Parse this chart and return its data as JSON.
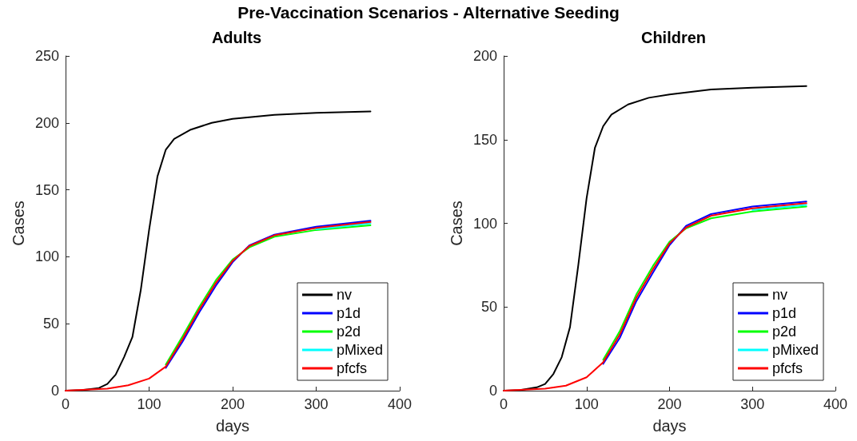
{
  "chart_data": [
    {
      "type": "line",
      "title": "Pre-Vaccination Scenarios - Alternative Seeding",
      "subtitle": "Adults",
      "xlabel": "days",
      "ylabel": "Cases",
      "xlim": [
        0,
        400
      ],
      "xticks": [
        0,
        100,
        200,
        300,
        400
      ],
      "ylim": [
        0,
        250
      ],
      "yticks": [
        0,
        50,
        100,
        150,
        200,
        250
      ],
      "grid": false,
      "legend": "bottom right",
      "marker": "none",
      "line_style": "solid",
      "series": [
        {
          "name": "nv",
          "color": "#000000",
          "x": [
            0,
            20,
            40,
            50,
            60,
            70,
            80,
            90,
            100,
            110,
            120,
            130,
            150,
            175,
            200,
            250,
            300,
            365
          ],
          "values": [
            0,
            0.5,
            2,
            5,
            12,
            25,
            40,
            75,
            120,
            160,
            180,
            188,
            195,
            200,
            203,
            206,
            207.5,
            208.5
          ]
        },
        {
          "name": "p1d",
          "color": "#0000ff",
          "x": [
            120,
            140,
            160,
            180,
            200,
            220,
            250,
            300,
            365
          ],
          "values": [
            17,
            36.5,
            58.5,
            78.5,
            96,
            108.5,
            116.5,
            122.5,
            127
          ]
        },
        {
          "name": "p2d",
          "color": "#00ff00",
          "x": [
            120,
            140,
            160,
            180,
            200,
            220,
            250,
            300,
            365
          ],
          "values": [
            19.5,
            40.5,
            62.5,
            82.5,
            98,
            107,
            115,
            120,
            123.5
          ]
        },
        {
          "name": "pMixed",
          "color": "#00ffff",
          "x": [
            300,
            365
          ],
          "values": [
            120.5,
            125
          ]
        },
        {
          "name": "pfcfs",
          "color": "#ff0000",
          "x": [
            0,
            50,
            75,
            100,
            120,
            140,
            160,
            180,
            200,
            220,
            250,
            300,
            365
          ],
          "values": [
            0,
            1.5,
            4,
            9,
            18,
            38.5,
            60.5,
            80.5,
            97,
            108,
            116,
            121.5,
            126
          ]
        }
      ]
    },
    {
      "type": "line",
      "title": "Children",
      "xlabel": "days",
      "ylabel": "Cases",
      "xlim": [
        0,
        400
      ],
      "xticks": [
        0,
        100,
        200,
        300,
        400
      ],
      "ylim": [
        0,
        200
      ],
      "yticks": [
        0,
        50,
        100,
        150,
        200
      ],
      "grid": false,
      "legend": "bottom right",
      "marker": "none",
      "line_style": "solid",
      "series": [
        {
          "name": "nv",
          "color": "#000000",
          "x": [
            0,
            20,
            40,
            50,
            60,
            70,
            80,
            90,
            100,
            110,
            120,
            130,
            150,
            175,
            200,
            250,
            300,
            365
          ],
          "values": [
            0,
            0.4,
            2,
            4,
            10,
            20,
            38,
            75,
            115,
            145,
            158,
            165,
            171,
            175,
            177,
            180,
            181,
            182
          ]
        },
        {
          "name": "p1d",
          "color": "#0000ff",
          "x": [
            120,
            140,
            160,
            180,
            200,
            220,
            250,
            300,
            365
          ],
          "values": [
            16,
            31.5,
            53.5,
            70.5,
            87,
            98.5,
            105.5,
            110,
            113
          ]
        },
        {
          "name": "p2d",
          "color": "#00ff00",
          "x": [
            120,
            140,
            160,
            180,
            200,
            220,
            250,
            300,
            365
          ],
          "values": [
            18.5,
            35.5,
            57.5,
            74.5,
            89,
            97,
            103,
            107,
            110
          ]
        },
        {
          "name": "pMixed",
          "color": "#00ffff",
          "x": [
            300,
            365
          ],
          "values": [
            108,
            111
          ]
        },
        {
          "name": "pfcfs",
          "color": "#ff0000",
          "x": [
            0,
            50,
            75,
            100,
            120,
            140,
            160,
            180,
            200,
            220,
            250,
            300,
            365
          ],
          "values": [
            0,
            1.2,
            3,
            8,
            17,
            33.5,
            55.5,
            72.5,
            88,
            97.5,
            104.5,
            109,
            112
          ]
        }
      ]
    }
  ]
}
